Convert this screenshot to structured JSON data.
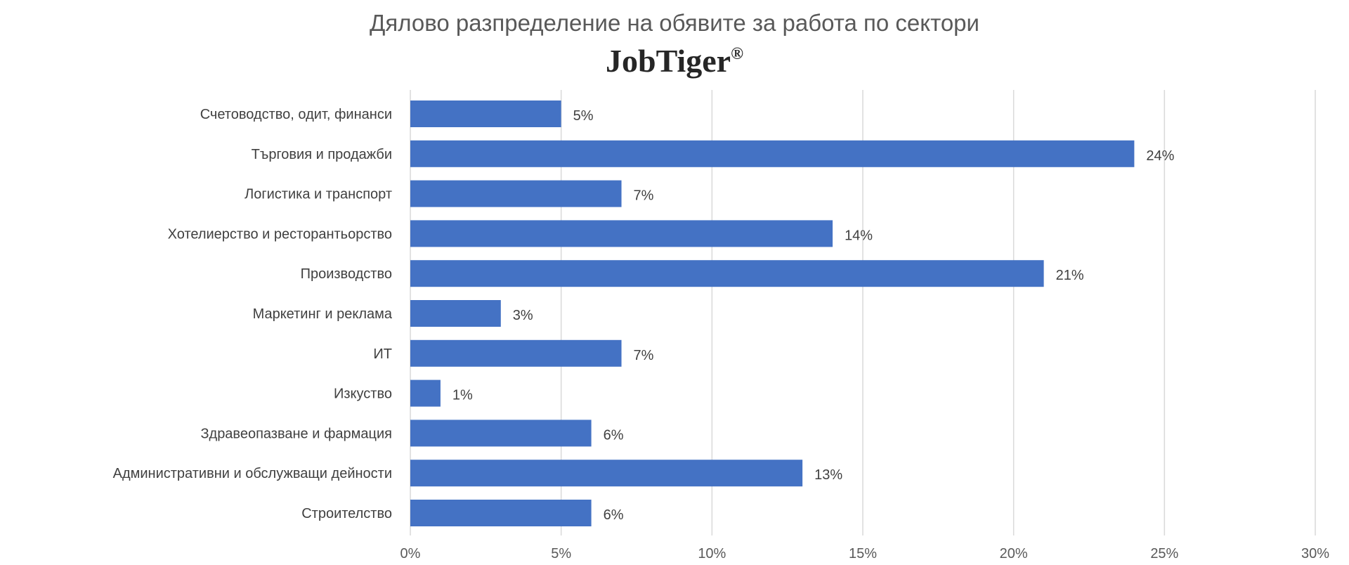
{
  "chart_data": {
    "type": "bar",
    "orientation": "horizontal",
    "title": "Дялово разпределение на обявите за работа по сектори",
    "logo_text": "JobTiger",
    "logo_mark": "®",
    "categories": [
      "Счетоводство, одит, финанси",
      "Търговия и продажби",
      "Логистика и транспорт",
      "Хотелиерство и ресторантьорство",
      "Производство",
      "Маркетинг и реклама",
      "ИТ",
      "Изкуство",
      "Здравеопазване и фармация",
      "Административни и обслужващи дейности",
      "Строителство"
    ],
    "values": [
      5,
      24,
      7,
      14,
      21,
      3,
      7,
      1,
      6,
      13,
      6
    ],
    "value_labels": [
      "5%",
      "24%",
      "7%",
      "14%",
      "21%",
      "3%",
      "7%",
      "1%",
      "6%",
      "13%",
      "6%"
    ],
    "xlim": [
      0,
      30
    ],
    "xticks": [
      "0%",
      "5%",
      "10%",
      "15%",
      "20%",
      "25%",
      "30%"
    ],
    "grid": "vertical",
    "legend": "none",
    "colors": {
      "bar": "#4472C4",
      "grid": "#D9D9D9",
      "text": "#404040"
    }
  }
}
